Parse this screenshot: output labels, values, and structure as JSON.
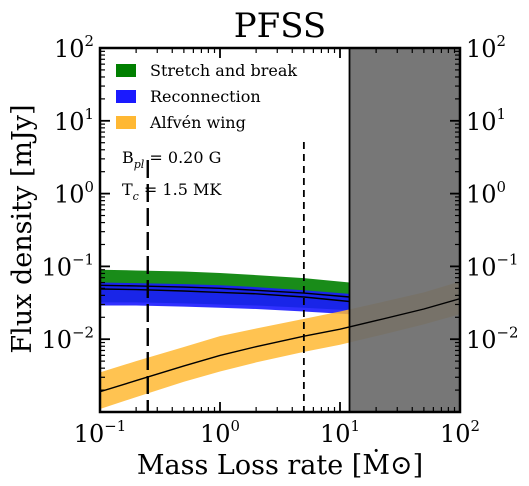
{
  "chart_data": {
    "type": "line",
    "title": "PFSS",
    "xlabel": "Mass Loss rate [Ṁ⊙]",
    "ylabel": "Flux density [mJy]",
    "xscale": "log",
    "yscale": "log",
    "xlim": [
      0.1,
      100
    ],
    "ylim": [
      0.001,
      100
    ],
    "x_ticks": [
      {
        "value": 0.1,
        "mant": "10",
        "exp": "−1"
      },
      {
        "value": 1,
        "mant": "10",
        "exp": "0"
      },
      {
        "value": 10,
        "mant": "10",
        "exp": "1"
      },
      {
        "value": 100,
        "mant": "10",
        "exp": "2"
      }
    ],
    "y_ticks": [
      {
        "value": 0.01,
        "mant": "10",
        "exp": "−2"
      },
      {
        "value": 0.1,
        "mant": "10",
        "exp": "−1"
      },
      {
        "value": 1,
        "mant": "10",
        "exp": "0"
      },
      {
        "value": 10,
        "mant": "10",
        "exp": "1"
      },
      {
        "value": 100,
        "mant": "10",
        "exp": "2"
      }
    ],
    "legend_position": "top-left",
    "series": [
      {
        "name": "Stretch and break",
        "color": "#007f00",
        "x": [
          0.1,
          0.2,
          0.5,
          1,
          2,
          5,
          12
        ],
        "center": [
          0.055,
          0.054,
          0.052,
          0.05,
          0.047,
          0.043,
          0.038
        ],
        "low": [
          0.032,
          0.032,
          0.031,
          0.03,
          0.029,
          0.027,
          0.025
        ],
        "high": [
          0.09,
          0.088,
          0.085,
          0.081,
          0.076,
          0.069,
          0.06
        ]
      },
      {
        "name": "Reconnection",
        "color": "#1a1aff",
        "x": [
          0.1,
          0.2,
          0.5,
          1,
          2,
          5,
          12
        ],
        "center": [
          0.049,
          0.048,
          0.046,
          0.044,
          0.042,
          0.038,
          0.033
        ],
        "low": [
          0.029,
          0.029,
          0.028,
          0.027,
          0.026,
          0.024,
          0.022
        ],
        "high": [
          0.06,
          0.059,
          0.057,
          0.055,
          0.052,
          0.047,
          0.042
        ]
      },
      {
        "name": "Alfvén wing",
        "color": "#ffb833",
        "x": [
          0.1,
          0.2,
          0.5,
          1,
          2,
          5,
          10,
          20,
          50,
          100
        ],
        "center": [
          0.0019,
          0.0027,
          0.0043,
          0.006,
          0.0079,
          0.011,
          0.0137,
          0.018,
          0.026,
          0.036
        ],
        "low": [
          0.0011,
          0.0016,
          0.0026,
          0.0036,
          0.0048,
          0.0067,
          0.0084,
          0.011,
          0.016,
          0.022
        ],
        "high": [
          0.0035,
          0.005,
          0.0078,
          0.011,
          0.014,
          0.019,
          0.024,
          0.031,
          0.044,
          0.062
        ]
      }
    ],
    "vlines": [
      {
        "x": 0.25,
        "style": "long-dash"
      },
      {
        "x": 5,
        "style": "dash"
      }
    ],
    "shaded_region": {
      "x_from": 12,
      "x_to": 100,
      "color": "#6b6b6b"
    },
    "annotations": [
      {
        "base": "B",
        "sub": "pl",
        "rest": " = 0.20 G"
      },
      {
        "base": "T",
        "sub": "c",
        "rest": " = 1.5 MK"
      }
    ]
  }
}
